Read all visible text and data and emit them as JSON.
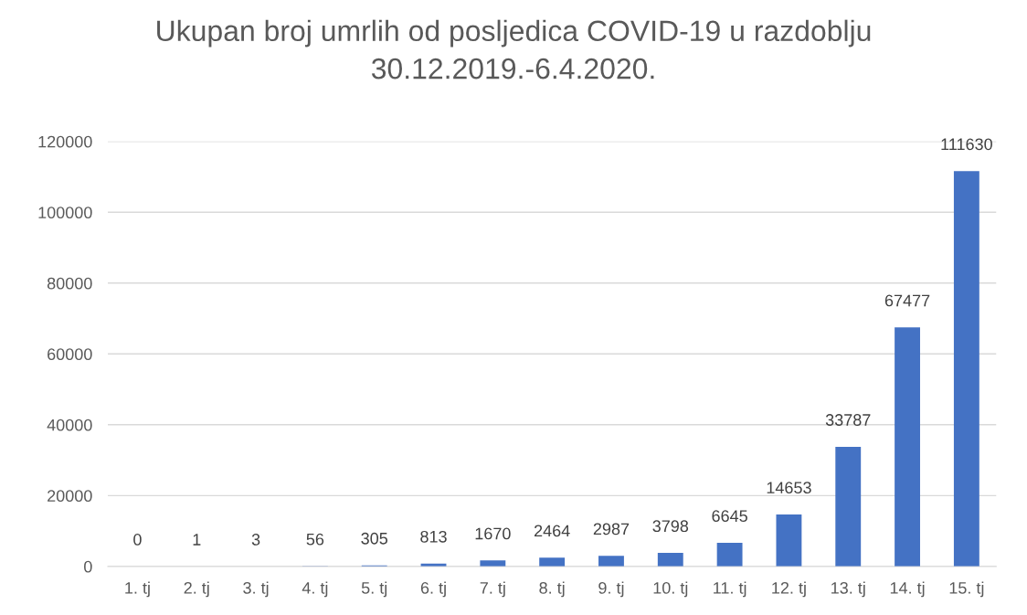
{
  "chart_data": {
    "type": "bar",
    "title": "Ukupan broj umrlih od posljedica COVID-19 u razdoblju\n30.12.2019.-6.4.2020.",
    "categories": [
      "1. tj",
      "2. tj",
      "3. tj",
      "4. tj",
      "5. tj",
      "6. tj",
      "7. tj",
      "8. tj",
      "9. tj",
      "10. tj",
      "11. tj",
      "12. tj",
      "13. tj",
      "14. tj",
      "15. tj"
    ],
    "values": [
      0,
      1,
      3,
      56,
      305,
      813,
      1670,
      2464,
      2987,
      3798,
      6645,
      14653,
      33787,
      67477,
      111630
    ],
    "color": "#4472c4",
    "ylim": [
      0,
      120000
    ],
    "yticks": [
      0,
      20000,
      40000,
      60000,
      80000,
      100000,
      120000
    ],
    "grid": "y",
    "data_labels": true
  }
}
